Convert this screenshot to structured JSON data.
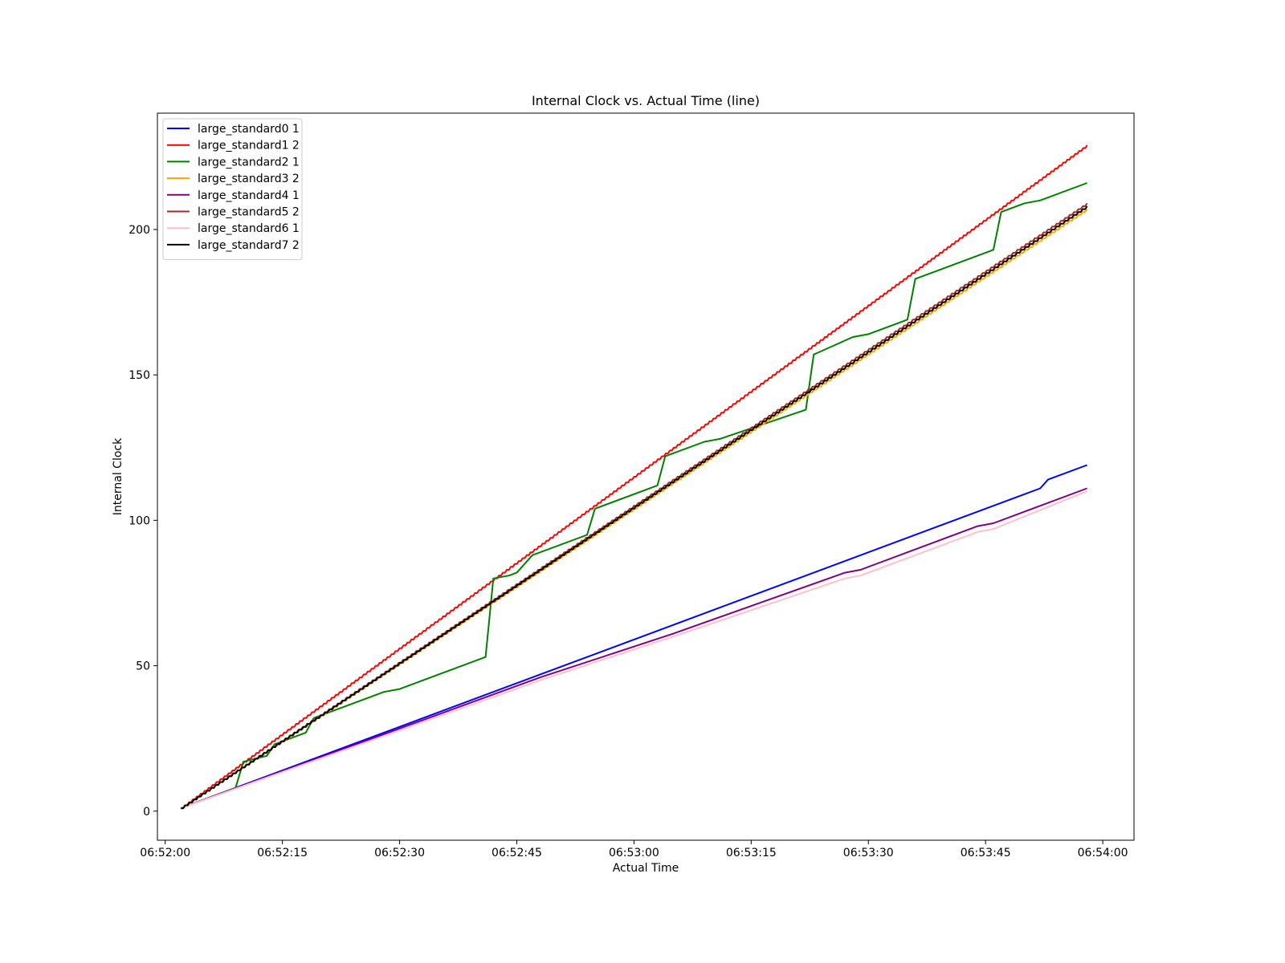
{
  "chart_data": {
    "type": "line",
    "title": "Internal Clock vs. Actual Time (line)",
    "xlabel": "Actual Time",
    "ylabel": "Internal Clock",
    "x_unit": "time (HH:MM:SS)",
    "xlim": [
      "06:51:59",
      "06:54:04"
    ],
    "ylim": [
      -10,
      240
    ],
    "x_ticks": [
      "06:52:00",
      "06:52:15",
      "06:52:30",
      "06:52:45",
      "06:53:00",
      "06:53:15",
      "06:53:30",
      "06:53:45",
      "06:54:00"
    ],
    "y_ticks": [
      0,
      50,
      100,
      150,
      200
    ],
    "grid": false,
    "legend_position": "top-left",
    "series": [
      {
        "name": "large_standard0 1",
        "color": "#0000ff",
        "style": "linear",
        "points": [
          [
            "06:52:02",
            1
          ],
          [
            "06:53:52",
            111
          ],
          [
            "06:53:53",
            114
          ],
          [
            "06:53:58",
            119
          ]
        ]
      },
      {
        "name": "large_standard1 2",
        "color": "#ff0000",
        "style": "stairs",
        "start": [
          "06:52:02",
          1
        ],
        "end": [
          "06:53:58",
          229
        ]
      },
      {
        "name": "large_standard2 1",
        "color": "#008000",
        "style": "linear",
        "points": [
          [
            "06:52:02",
            1
          ],
          [
            "06:52:09",
            8
          ],
          [
            "06:52:10",
            17
          ],
          [
            "06:52:13",
            19
          ],
          [
            "06:52:14",
            23
          ],
          [
            "06:52:18",
            27
          ],
          [
            "06:52:19",
            32
          ],
          [
            "06:52:28",
            41
          ],
          [
            "06:52:30",
            42
          ],
          [
            "06:52:41",
            53
          ],
          [
            "06:52:42",
            80
          ],
          [
            "06:52:44",
            81
          ],
          [
            "06:52:45",
            82
          ],
          [
            "06:52:47",
            88
          ],
          [
            "06:52:54",
            95
          ],
          [
            "06:52:55",
            104
          ],
          [
            "06:53:03",
            112
          ],
          [
            "06:53:04",
            122
          ],
          [
            "06:53:09",
            127
          ],
          [
            "06:53:11",
            128
          ],
          [
            "06:53:22",
            138
          ],
          [
            "06:53:23",
            157
          ],
          [
            "06:53:28",
            163
          ],
          [
            "06:53:30",
            164
          ],
          [
            "06:53:35",
            169
          ],
          [
            "06:53:36",
            183
          ],
          [
            "06:53:46",
            193
          ],
          [
            "06:53:47",
            206
          ],
          [
            "06:53:50",
            209
          ],
          [
            "06:53:52",
            210
          ],
          [
            "06:53:58",
            216
          ]
        ]
      },
      {
        "name": "large_standard3 2",
        "color": "#ffa500",
        "style": "stairs",
        "start": [
          "06:52:02",
          1
        ],
        "end": [
          "06:53:58",
          207
        ]
      },
      {
        "name": "large_standard4 1",
        "color": "#800080",
        "style": "linear",
        "points": [
          [
            "06:52:02",
            1
          ],
          [
            "06:52:48",
            46
          ],
          [
            "06:53:05",
            61
          ],
          [
            "06:53:27",
            82
          ],
          [
            "06:53:29",
            83
          ],
          [
            "06:53:44",
            98
          ],
          [
            "06:53:46",
            99
          ],
          [
            "06:53:58",
            111
          ]
        ]
      },
      {
        "name": "large_standard5 2",
        "color": "#a52a2a",
        "style": "stairs",
        "start": [
          "06:52:02",
          1
        ],
        "end": [
          "06:53:58",
          209
        ]
      },
      {
        "name": "large_standard6 1",
        "color": "#ffc0cb",
        "style": "linear",
        "points": [
          [
            "06:52:02",
            1
          ],
          [
            "06:52:48",
            45
          ],
          [
            "06:53:05",
            60
          ],
          [
            "06:53:27",
            80
          ],
          [
            "06:53:29",
            81
          ],
          [
            "06:53:44",
            96
          ],
          [
            "06:53:46",
            97
          ],
          [
            "06:53:58",
            110
          ]
        ]
      },
      {
        "name": "large_standard7 2",
        "color": "#000000",
        "style": "stairs",
        "start": [
          "06:52:02",
          1
        ],
        "end": [
          "06:53:58",
          208
        ]
      }
    ]
  }
}
